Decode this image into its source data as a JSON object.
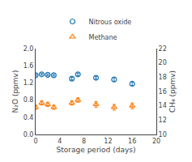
{
  "chart_data": {
    "type": "scatter",
    "x_label": "Storage period (days)",
    "y_label": "N₂O (ppmv)",
    "y2_label": "CH₄ (ppmv)",
    "x": [
      0,
      1,
      2,
      3,
      6,
      7,
      10,
      13,
      16
    ],
    "series": [
      {
        "name": "Nitrous oxide",
        "marker": "circle",
        "values": [
          1.38,
          1.4,
          1.39,
          1.38,
          1.3,
          1.4,
          1.32,
          1.28,
          1.18
        ],
        "error": [
          0.02,
          0.02,
          0.02,
          0.02,
          0.03,
          0.03,
          0.03,
          0.04,
          0.04
        ]
      },
      {
        "name": "Methane",
        "marker": "triangle",
        "axis": "y2",
        "values": [
          13.8,
          14.4,
          14.2,
          13.8,
          14.4,
          14.8,
          14.2,
          13.8,
          14.0
        ],
        "error": [
          0.3,
          0.3,
          0.3,
          0.3,
          0.3,
          0.3,
          0.4,
          0.4,
          0.4
        ]
      }
    ],
    "xlim": [
      0,
      20
    ],
    "xticks": [
      0,
      4,
      8,
      12,
      16,
      20
    ],
    "ylim": [
      0,
      2.0
    ],
    "yticks": [
      {
        "value": 0,
        "label": "0.0"
      },
      0.4,
      0.8,
      1.2,
      1.6,
      {
        "value": 2.0,
        "label": "2.0"
      }
    ],
    "y2lim": [
      10,
      22
    ],
    "y2ticks": [
      10,
      12,
      14,
      16,
      18,
      20,
      22
    ],
    "legend": "top",
    "grid": false
  }
}
